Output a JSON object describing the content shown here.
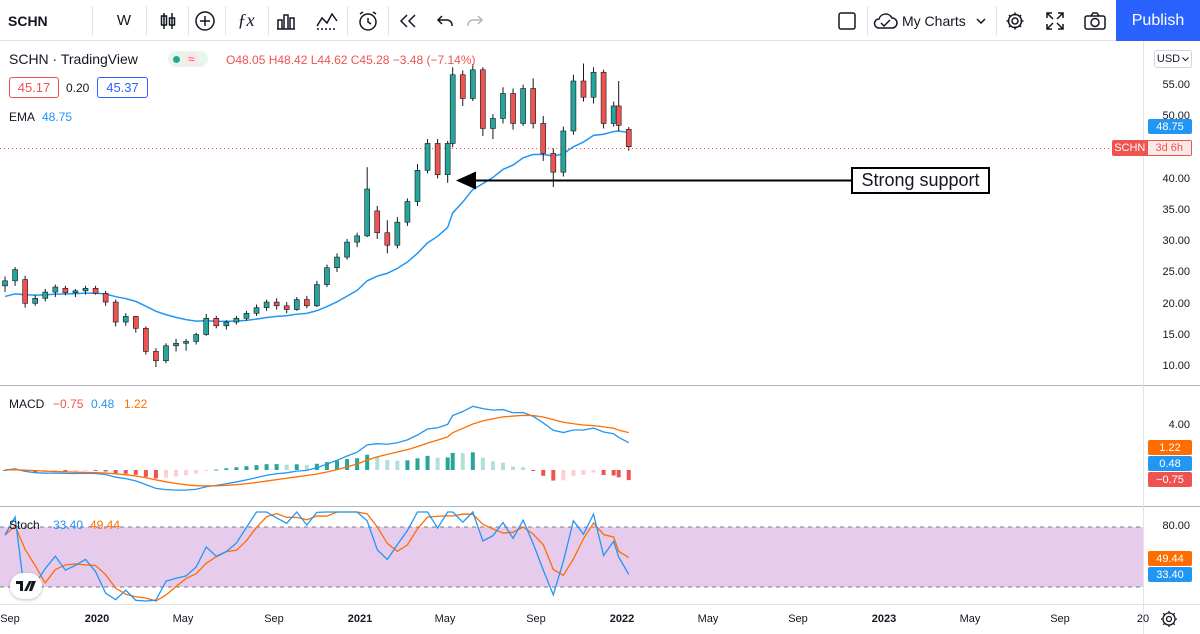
{
  "toolbar": {
    "symbol": "SCHN",
    "interval": "W",
    "my_charts": "My Charts",
    "publish": "Publish",
    "icons": [
      "bar-style-icon",
      "add-compare-icon",
      "indicators-icon",
      "templates-icon",
      "alert-icon",
      "replay-icon",
      "undo-icon",
      "redo-icon"
    ]
  },
  "legend": {
    "title": "SCHN · TradingView",
    "ohlc": "O48.05 H48.42 L44.62 C45.28 −3.48 (−7.14%)",
    "bid": "45.17",
    "spread": "0.20",
    "ask": "45.37",
    "ema_label": "EMA",
    "ema_value": "48.75"
  },
  "macd_legend": {
    "label": "MACD",
    "v1": "−0.75",
    "v2": "0.48",
    "v3": "1.22"
  },
  "stoch_legend": {
    "label": "Stoch",
    "v1": "33.40",
    "v2": "49.44"
  },
  "price_axis": {
    "currency": "USD",
    "ticks": [
      "55.00",
      "50.00",
      "45.00",
      "40.00",
      "35.00",
      "30.00",
      "25.00",
      "20.00",
      "15.00",
      "10.00"
    ]
  },
  "macd_axis": {
    "ticks": [
      "4.00"
    ]
  },
  "stoch_axis": {
    "ticks": [
      "80.00"
    ]
  },
  "tags": {
    "ema": "48.75",
    "symbol": "SCHN",
    "countdown": "3d 6h",
    "macd_signal": "1.22",
    "macd_line": "0.48",
    "macd_hist": "−0.75",
    "stoch_d": "49.44",
    "stoch_k": "33.40"
  },
  "x_axis": [
    "Sep",
    "2020",
    "May",
    "Sep",
    "2021",
    "May",
    "Sep",
    "2022",
    "May",
    "Sep",
    "2023",
    "May",
    "Sep",
    "20"
  ],
  "annotation": "Strong support",
  "colors": {
    "up": "#26a69a",
    "down": "#ef5350",
    "ema": "#2196f3",
    "macd": "#2196f3",
    "signal": "#ff6d00",
    "stoch_fill": "#e1bee7",
    "publish": "#2962ff"
  },
  "chart_data": {
    "type": "candlestick",
    "interval": "weekly",
    "y_unit": "USD",
    "ylim": [
      8,
      60
    ],
    "candles": [
      {
        "date": "2019-08-26",
        "o": 23.0,
        "h": 24.5,
        "l": 22.0,
        "c": 23.8
      },
      {
        "date": "2019-09-09",
        "o": 23.8,
        "h": 26.0,
        "l": 23.0,
        "c": 25.6
      },
      {
        "date": "2019-09-23",
        "o": 24.0,
        "h": 24.6,
        "l": 19.5,
        "c": 20.2
      },
      {
        "date": "2019-10-07",
        "o": 20.2,
        "h": 21.5,
        "l": 19.8,
        "c": 21.0
      },
      {
        "date": "2019-10-21",
        "o": 21.0,
        "h": 22.5,
        "l": 20.5,
        "c": 22.0
      },
      {
        "date": "2019-11-04",
        "o": 22.0,
        "h": 23.2,
        "l": 21.2,
        "c": 22.8
      },
      {
        "date": "2019-11-18",
        "o": 22.6,
        "h": 23.0,
        "l": 21.5,
        "c": 21.9
      },
      {
        "date": "2019-12-02",
        "o": 21.9,
        "h": 22.5,
        "l": 21.2,
        "c": 22.2
      },
      {
        "date": "2019-12-16",
        "o": 22.2,
        "h": 23.0,
        "l": 21.6,
        "c": 22.6
      },
      {
        "date": "2019-12-30",
        "o": 22.6,
        "h": 23.0,
        "l": 21.6,
        "c": 21.8
      },
      {
        "date": "2020-01-13",
        "o": 21.8,
        "h": 22.2,
        "l": 19.8,
        "c": 20.4
      },
      {
        "date": "2020-01-27",
        "o": 20.4,
        "h": 20.8,
        "l": 16.5,
        "c": 17.2
      },
      {
        "date": "2020-02-10",
        "o": 17.2,
        "h": 18.6,
        "l": 16.6,
        "c": 18.1
      },
      {
        "date": "2020-02-24",
        "o": 18.1,
        "h": 18.2,
        "l": 15.5,
        "c": 16.2
      },
      {
        "date": "2020-03-09",
        "o": 16.2,
        "h": 16.5,
        "l": 12.0,
        "c": 12.5
      },
      {
        "date": "2020-03-23",
        "o": 12.5,
        "h": 13.0,
        "l": 10.0,
        "c": 11.0
      },
      {
        "date": "2020-04-06",
        "o": 11.0,
        "h": 13.8,
        "l": 10.6,
        "c": 13.4
      },
      {
        "date": "2020-04-20",
        "o": 13.4,
        "h": 14.5,
        "l": 12.5,
        "c": 13.8
      },
      {
        "date": "2020-05-04",
        "o": 13.8,
        "h": 14.5,
        "l": 12.6,
        "c": 14.1
      },
      {
        "date": "2020-05-18",
        "o": 14.1,
        "h": 15.5,
        "l": 13.6,
        "c": 15.2
      },
      {
        "date": "2020-06-01",
        "o": 15.2,
        "h": 18.5,
        "l": 15.0,
        "c": 17.8
      },
      {
        "date": "2020-06-15",
        "o": 17.8,
        "h": 18.2,
        "l": 16.2,
        "c": 16.6
      },
      {
        "date": "2020-06-29",
        "o": 16.6,
        "h": 17.5,
        "l": 16.0,
        "c": 17.2
      },
      {
        "date": "2020-07-13",
        "o": 17.2,
        "h": 18.2,
        "l": 16.8,
        "c": 17.8
      },
      {
        "date": "2020-07-27",
        "o": 17.8,
        "h": 19.0,
        "l": 17.4,
        "c": 18.6
      },
      {
        "date": "2020-08-10",
        "o": 18.6,
        "h": 20.0,
        "l": 18.2,
        "c": 19.5
      },
      {
        "date": "2020-08-24",
        "o": 19.5,
        "h": 20.8,
        "l": 19.0,
        "c": 20.4
      },
      {
        "date": "2020-09-07",
        "o": 20.4,
        "h": 21.0,
        "l": 19.2,
        "c": 19.8
      },
      {
        "date": "2020-09-21",
        "o": 19.8,
        "h": 20.4,
        "l": 18.6,
        "c": 19.2
      },
      {
        "date": "2020-10-05",
        "o": 19.2,
        "h": 21.2,
        "l": 19.0,
        "c": 20.8
      },
      {
        "date": "2020-10-19",
        "o": 20.8,
        "h": 21.4,
        "l": 19.4,
        "c": 19.8
      },
      {
        "date": "2020-11-02",
        "o": 19.8,
        "h": 23.8,
        "l": 19.6,
        "c": 23.2
      },
      {
        "date": "2020-11-16",
        "o": 23.2,
        "h": 26.4,
        "l": 22.8,
        "c": 25.9
      },
      {
        "date": "2020-11-30",
        "o": 25.9,
        "h": 28.2,
        "l": 25.2,
        "c": 27.6
      },
      {
        "date": "2020-12-14",
        "o": 27.6,
        "h": 30.5,
        "l": 27.2,
        "c": 30.0
      },
      {
        "date": "2020-12-28",
        "o": 30.0,
        "h": 31.5,
        "l": 29.2,
        "c": 31.0
      },
      {
        "date": "2021-01-11",
        "o": 31.0,
        "h": 42.0,
        "l": 30.8,
        "c": 38.5
      },
      {
        "date": "2021-01-25",
        "o": 35.0,
        "h": 35.8,
        "l": 30.5,
        "c": 31.5
      },
      {
        "date": "2021-02-08",
        "o": 31.5,
        "h": 33.5,
        "l": 28.2,
        "c": 29.5
      },
      {
        "date": "2021-02-22",
        "o": 29.5,
        "h": 34.0,
        "l": 29.0,
        "c": 33.2
      },
      {
        "date": "2021-03-08",
        "o": 33.2,
        "h": 37.0,
        "l": 32.6,
        "c": 36.5
      },
      {
        "date": "2021-03-22",
        "o": 36.5,
        "h": 42.5,
        "l": 35.8,
        "c": 41.5
      },
      {
        "date": "2021-04-05",
        "o": 41.5,
        "h": 46.5,
        "l": 41.0,
        "c": 45.8
      },
      {
        "date": "2021-04-19",
        "o": 45.8,
        "h": 46.5,
        "l": 40.2,
        "c": 40.8
      },
      {
        "date": "2021-05-03",
        "o": 40.8,
        "h": 46.2,
        "l": 39.5,
        "c": 45.8
      },
      {
        "date": "2021-05-10",
        "o": 45.8,
        "h": 58.0,
        "l": 45.2,
        "c": 56.8
      },
      {
        "date": "2021-05-24",
        "o": 56.8,
        "h": 57.5,
        "l": 51.8,
        "c": 53.0
      },
      {
        "date": "2021-06-07",
        "o": 53.0,
        "h": 58.5,
        "l": 52.6,
        "c": 57.6
      },
      {
        "date": "2021-06-21",
        "o": 57.6,
        "h": 58.0,
        "l": 47.0,
        "c": 48.2
      },
      {
        "date": "2021-07-05",
        "o": 48.2,
        "h": 50.5,
        "l": 46.5,
        "c": 49.8
      },
      {
        "date": "2021-07-19",
        "o": 49.8,
        "h": 54.8,
        "l": 49.0,
        "c": 53.8
      },
      {
        "date": "2021-08-02",
        "o": 53.8,
        "h": 54.6,
        "l": 48.0,
        "c": 49.0
      },
      {
        "date": "2021-08-16",
        "o": 49.0,
        "h": 55.2,
        "l": 48.6,
        "c": 54.6
      },
      {
        "date": "2021-08-30",
        "o": 54.6,
        "h": 56.2,
        "l": 48.2,
        "c": 49.0
      },
      {
        "date": "2021-09-13",
        "o": 49.0,
        "h": 50.2,
        "l": 43.0,
        "c": 44.2
      },
      {
        "date": "2021-09-27",
        "o": 44.2,
        "h": 45.0,
        "l": 38.8,
        "c": 41.2
      },
      {
        "date": "2021-10-11",
        "o": 41.2,
        "h": 48.5,
        "l": 40.5,
        "c": 47.8
      },
      {
        "date": "2021-10-25",
        "o": 47.8,
        "h": 56.8,
        "l": 47.2,
        "c": 55.8
      },
      {
        "date": "2021-11-08",
        "o": 55.8,
        "h": 58.6,
        "l": 52.5,
        "c": 53.2
      },
      {
        "date": "2021-11-22",
        "o": 53.2,
        "h": 58.0,
        "l": 52.2,
        "c": 57.2
      },
      {
        "date": "2021-12-06",
        "o": 57.2,
        "h": 57.6,
        "l": 48.2,
        "c": 49.0
      },
      {
        "date": "2021-12-20",
        "o": 49.0,
        "h": 52.5,
        "l": 48.5,
        "c": 51.8
      },
      {
        "date": "2021-12-27",
        "o": 51.8,
        "h": 55.8,
        "l": 47.8,
        "c": 48.7
      },
      {
        "date": "2022-01-10",
        "o": 48.05,
        "h": 48.42,
        "l": 44.62,
        "c": 45.28
      }
    ],
    "ema": {
      "label": "EMA",
      "last": 48.75
    },
    "annotation": {
      "text": "Strong support",
      "price": 41.0
    },
    "macd": {
      "values": [
        -0.75,
        0.48,
        1.22
      ],
      "tick": 4.0
    },
    "stoch": {
      "k": 33.4,
      "d": 49.44,
      "upper": 80,
      "lower": 20
    }
  }
}
